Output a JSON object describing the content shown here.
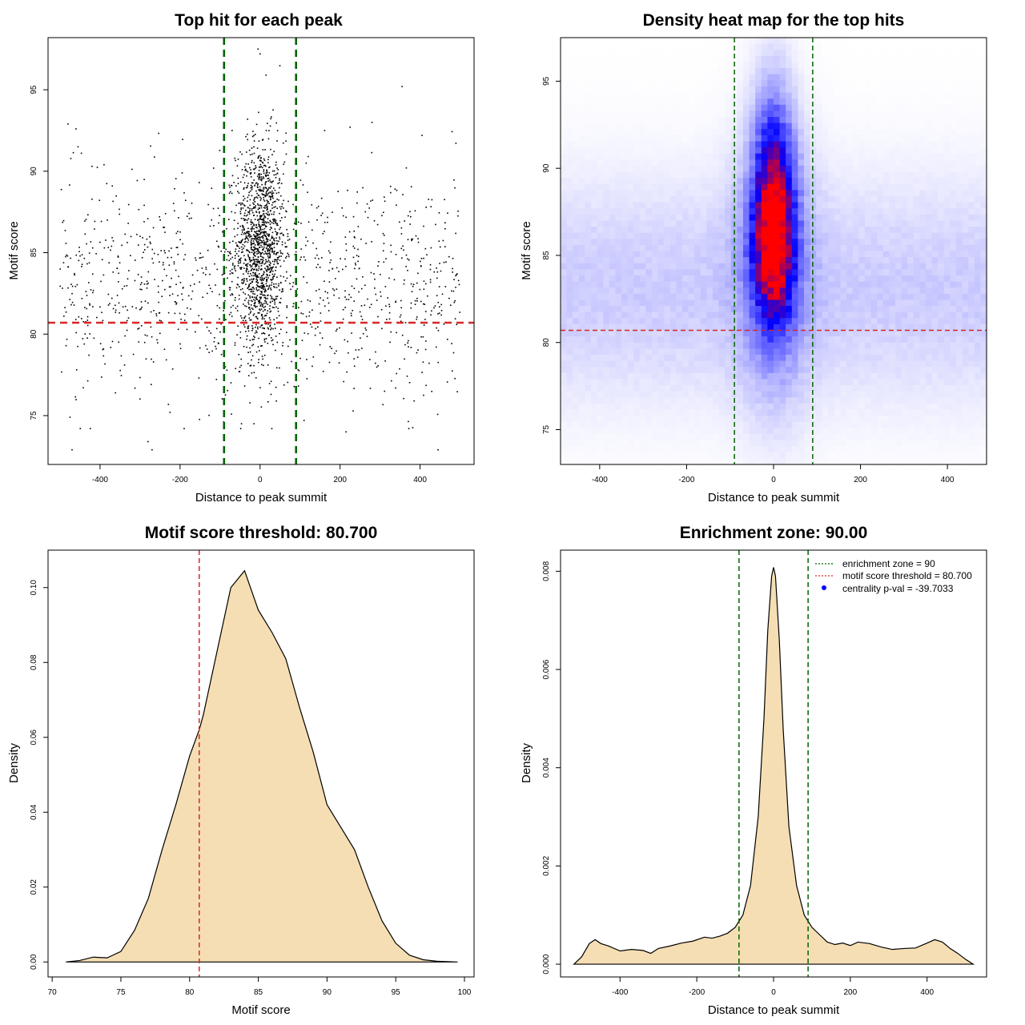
{
  "chart_data": [
    {
      "type": "scatter",
      "title": "Top hit for each peak",
      "xlabel": "Distance to peak summit",
      "ylabel": "Motif score",
      "xlim": [
        -530,
        535
      ],
      "ylim": [
        72.0,
        98.2
      ],
      "xticks": [
        -400,
        -200,
        0,
        200,
        400
      ],
      "yticks": [
        75,
        80,
        85,
        90,
        95
      ],
      "xtick_labels": [
        "-400",
        "-200",
        "0",
        "200",
        "400"
      ],
      "ytick_labels": [
        "75",
        "80",
        "85",
        "90",
        "95"
      ],
      "vlines": [
        -90,
        90
      ],
      "hline": 80.7,
      "colors": {
        "points": "#000000",
        "zone": "#006400",
        "threshold": "#d62728"
      },
      "point_sampling": {
        "n_total": 2400,
        "central_fraction": 0.55,
        "central_x_sd": 30,
        "central_score_mean": 85.5,
        "central_score_sd": 3.2,
        "background_x_range": [
          -500,
          500
        ],
        "background_score_mean": 83.0,
        "background_score_sd": 3.4
      },
      "sample_points": [
        [
          -480,
          92.9
        ],
        [
          -460,
          92.6
        ],
        [
          -455,
          91.5
        ],
        [
          -420,
          90.3
        ],
        [
          -390,
          90.4
        ],
        [
          -280,
          73.4
        ],
        [
          -270,
          72.9
        ],
        [
          -470,
          72.9
        ],
        [
          -475,
          74.9
        ],
        [
          -225,
          75.2
        ],
        [
          -5,
          97.5
        ],
        [
          0,
          97.2
        ],
        [
          15,
          95.9
        ],
        [
          355,
          95.2
        ],
        [
          405,
          92.2
        ],
        [
          225,
          92.7
        ],
        [
          280,
          93.0
        ],
        [
          110,
          74.7
        ],
        [
          215,
          74.0
        ],
        [
          445,
          72.9
        ]
      ]
    },
    {
      "type": "heatmap",
      "title": "Density heat map for the top hits",
      "xlabel": "Distance to peak summit",
      "ylabel": "Motif score",
      "xlim": [
        -490,
        490
      ],
      "ylim": [
        73.0,
        97.5
      ],
      "xticks": [
        -400,
        -200,
        0,
        200,
        400
      ],
      "yticks": [
        75,
        80,
        85,
        90,
        95
      ],
      "xtick_labels": [
        "-400",
        "-200",
        "0",
        "200",
        "400"
      ],
      "ytick_labels": [
        "75",
        "80",
        "85",
        "90",
        "95"
      ],
      "vlines": [
        -90,
        90
      ],
      "hline": 80.7,
      "color_scale": [
        "#ffffff",
        "#0000ff",
        "#ff0000"
      ],
      "colors": {
        "zone": "#006400",
        "threshold": "#d62728"
      },
      "density_peak": {
        "x": 0,
        "score": 86.0
      }
    },
    {
      "type": "area",
      "title": "Motif score threshold: 80.700",
      "xlabel": "Motif score",
      "ylabel": "Density",
      "xlim": [
        69.7,
        100.7
      ],
      "ylim": [
        -0.004,
        0.11
      ],
      "xticks": [
        70,
        75,
        80,
        85,
        90,
        95,
        100
      ],
      "yticks": [
        0.0,
        0.02,
        0.04,
        0.06,
        0.08,
        0.1
      ],
      "xtick_labels": [
        "70",
        "75",
        "80",
        "85",
        "90",
        "95",
        "100"
      ],
      "ytick_labels": [
        "0.00",
        "0.02",
        "0.04",
        "0.06",
        "0.08",
        "0.10"
      ],
      "vline": 80.7,
      "colors": {
        "fill": "#f5deb3",
        "line": "#000000",
        "threshold": "#d62728"
      },
      "x": [
        71.0,
        72.0,
        73.0,
        74.0,
        75.0,
        76.0,
        77.0,
        78.0,
        79.0,
        80.0,
        80.7,
        81.0,
        82.0,
        83.0,
        84.0,
        85.0,
        86.0,
        87.0,
        88.0,
        89.0,
        90.0,
        91.0,
        92.0,
        93.0,
        94.0,
        95.0,
        96.0,
        97.0,
        98.0,
        99.5
      ],
      "y": [
        0.0,
        0.0004,
        0.0013,
        0.0011,
        0.0028,
        0.0085,
        0.017,
        0.03,
        0.042,
        0.055,
        0.062,
        0.066,
        0.083,
        0.1,
        0.1045,
        0.094,
        0.088,
        0.081,
        0.068,
        0.056,
        0.042,
        0.036,
        0.03,
        0.02,
        0.011,
        0.005,
        0.0018,
        0.0006,
        0.0002,
        0.0
      ]
    },
    {
      "type": "area",
      "title": "Enrichment zone: 90.00",
      "xlabel": "Distance to peak summit",
      "ylabel": "Density",
      "xlim": [
        -555,
        555
      ],
      "ylim": [
        -0.00026,
        0.00843
      ],
      "xticks": [
        -400,
        -200,
        0,
        200,
        400
      ],
      "yticks": [
        0.0,
        0.002,
        0.004,
        0.006,
        0.008
      ],
      "xtick_labels": [
        "-400",
        "-200",
        "0",
        "200",
        "400"
      ],
      "ytick_labels": [
        "0.000",
        "0.002",
        "0.004",
        "0.006",
        "0.008"
      ],
      "vlines": [
        -90,
        90
      ],
      "colors": {
        "fill": "#f5deb3",
        "line": "#000000",
        "zone": "#006400",
        "threshold": "#d62728",
        "pval": "#0000ff"
      },
      "legend": {
        "position": "top-right",
        "entries": [
          {
            "label": "enrichment zone = 90",
            "kind": "dotted-line",
            "color": "#006400"
          },
          {
            "label": "motif score threshold = 80.700",
            "kind": "dotted-line",
            "color": "#d62728"
          },
          {
            "label": "centrality p-val = -39.7033",
            "kind": "dot",
            "color": "#0000ff"
          }
        ]
      },
      "x": [
        -520,
        -500,
        -480,
        -465,
        -450,
        -430,
        -400,
        -370,
        -340,
        -320,
        -300,
        -270,
        -240,
        -210,
        -180,
        -160,
        -140,
        -120,
        -100,
        -80,
        -60,
        -40,
        -25,
        -15,
        -5,
        0,
        5,
        15,
        25,
        40,
        60,
        80,
        100,
        120,
        140,
        160,
        180,
        200,
        220,
        250,
        280,
        310,
        340,
        370,
        400,
        420,
        440,
        460,
        480,
        500,
        520
      ],
      "y": [
        0.0,
        0.00015,
        0.00042,
        0.0005,
        0.00042,
        0.00037,
        0.00027,
        0.0003,
        0.00028,
        0.00022,
        0.00032,
        0.00037,
        0.00043,
        0.00047,
        0.00055,
        0.00053,
        0.00057,
        0.00063,
        0.00075,
        0.001,
        0.0016,
        0.003,
        0.005,
        0.0068,
        0.0079,
        0.00808,
        0.0079,
        0.0066,
        0.0048,
        0.0028,
        0.0016,
        0.001,
        0.00075,
        0.0006,
        0.00045,
        0.0004,
        0.00043,
        0.00038,
        0.00045,
        0.00042,
        0.00035,
        0.0003,
        0.00032,
        0.00033,
        0.00043,
        0.0005,
        0.00045,
        0.00032,
        0.00022,
        0.0001,
        0.0
      ]
    }
  ]
}
